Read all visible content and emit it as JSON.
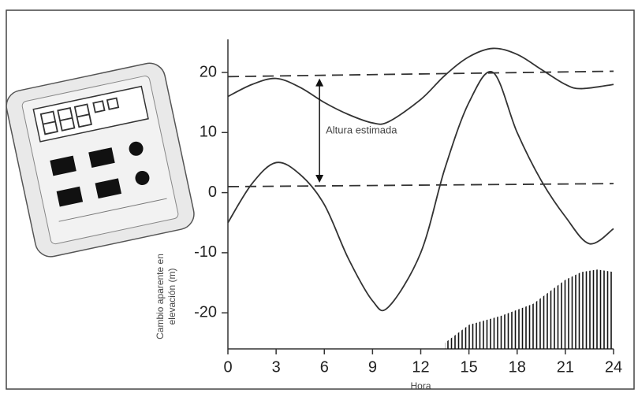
{
  "chart_data": {
    "type": "line",
    "xlabel": "Hora",
    "ylabel": [
      "Cambio aparente en",
      "elevación (m)"
    ],
    "xlim": [
      0,
      24
    ],
    "ylim": [
      -26,
      25.5
    ],
    "xticks": [
      0,
      3,
      6,
      9,
      12,
      15,
      18,
      21,
      24
    ],
    "yticks": [
      -20,
      -10,
      0,
      10,
      20
    ],
    "series": [
      {
        "x": [
          0,
          1.5,
          3,
          4.5,
          6,
          7.5,
          9,
          10,
          12,
          13.5,
          15,
          16.5,
          18,
          19.5,
          21,
          22,
          24
        ],
        "values": [
          16,
          18,
          19,
          17.5,
          15,
          13,
          11.6,
          11.8,
          15.5,
          19.5,
          22.6,
          24,
          23,
          20.5,
          18,
          17.3,
          18
        ],
        "color": "#333"
      },
      {
        "x": [
          0,
          1.5,
          3,
          4.5,
          6,
          7.5,
          9,
          10,
          12,
          13.5,
          15,
          16.5,
          18,
          19.5,
          21,
          22.5,
          24
        ],
        "values": [
          -5,
          1.5,
          5,
          3,
          -2,
          -11,
          -18,
          -19,
          -10,
          4,
          15,
          20,
          10,
          2,
          -4,
          -8.5,
          -6
        ],
        "color": "#333"
      }
    ],
    "reference_lines": [
      {
        "x": [
          0,
          24
        ],
        "values": [
          19.3,
          20.2
        ]
      },
      {
        "x": [
          0,
          24
        ],
        "values": [
          1,
          1.5
        ]
      }
    ],
    "area": {
      "x": [
        13.5,
        15,
        17,
        19,
        20,
        21,
        22,
        23,
        24
      ],
      "values": [
        -25,
        -22,
        -20.5,
        -18.5,
        -16.5,
        -14.5,
        -13.2,
        -12.8,
        -13.2
      ]
    },
    "annotation": {
      "text": "Altura estimada",
      "x": 5.7
    }
  }
}
